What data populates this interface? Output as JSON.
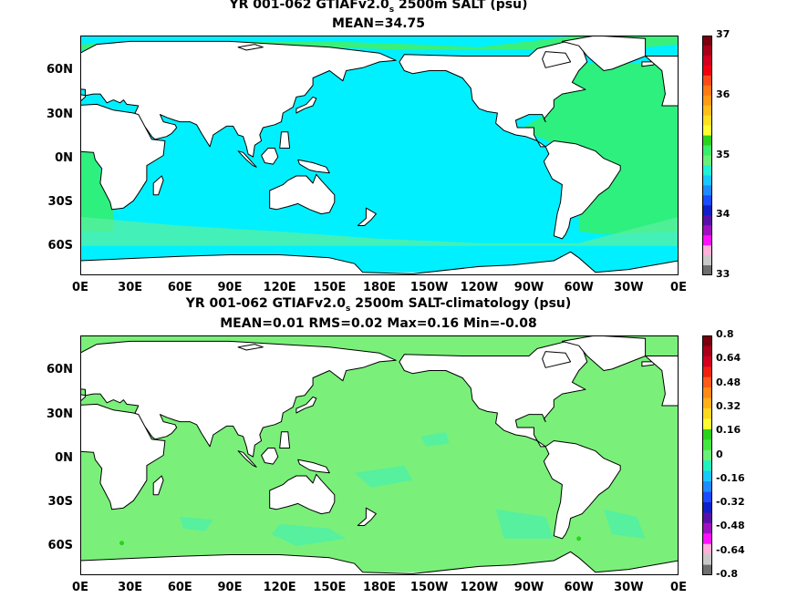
{
  "panels": [
    {
      "title_pre": "YR 001-062 GTIAFv2.0",
      "title_sub": "s",
      "title_post": " 2500m SALT (psu)",
      "subtitle": "MEAN=34.75"
    },
    {
      "title_pre": "YR 001-062 GTIAFv2.0",
      "title_sub": "s",
      "title_post": " 2500m SALT-climatology (psu)",
      "subtitle": "MEAN=0.01   RMS=0.02   Max=0.16   Min=-0.08"
    }
  ],
  "chart_data": [
    {
      "type": "heatmap",
      "variable": "SALT",
      "units": "psu",
      "mean": 34.75,
      "x_ticks": [
        "0E",
        "30E",
        "60E",
        "90E",
        "120E",
        "150E",
        "180E",
        "150W",
        "120W",
        "90W",
        "60W",
        "30W",
        "0E"
      ],
      "y_ticks": [
        "60N",
        "30N",
        "0N",
        "30S",
        "60S"
      ],
      "colorbar": {
        "labels": [
          "37",
          "36",
          "35",
          "34",
          "33"
        ],
        "values": [
          37,
          36,
          35,
          34,
          33
        ],
        "range": [
          33,
          37
        ],
        "colors": [
          "#7a0010",
          "#a80018",
          "#d20020",
          "#f20010",
          "#ff4a1a",
          "#ff7a14",
          "#ff9a14",
          "#ffbe18",
          "#ffe020",
          "#ffff30",
          "#2ad21c",
          "#38ee6a",
          "#6af078",
          "#20f2d6",
          "#18c8ff",
          "#1e8cff",
          "#1c4cff",
          "#1020c8",
          "#5a10a8",
          "#a010c0",
          "#ff10ff",
          "#ffb0d8",
          "#c8c8c8",
          "#6e6e6e"
        ]
      },
      "fill_colors": {
        "pacific_indian": "#00f0ff",
        "atlantic": "#2ef07e",
        "southern": "#5af0a0",
        "outlying": "#3af07a"
      }
    },
    {
      "type": "heatmap",
      "variable": "SALT-climatology",
      "units": "psu",
      "mean": 0.01,
      "rms": 0.02,
      "max": 0.16,
      "min": -0.08,
      "x_ticks": [
        "0E",
        "30E",
        "60E",
        "90E",
        "120E",
        "150E",
        "180E",
        "150W",
        "120W",
        "90W",
        "60W",
        "30W",
        "0E"
      ],
      "y_ticks": [
        "60N",
        "30N",
        "0N",
        "30S",
        "60S"
      ],
      "colorbar": {
        "labels": [
          "0.8",
          "0.64",
          "0.48",
          "0.32",
          "0.16",
          "0",
          "-0.16",
          "-0.32",
          "-0.48",
          "-0.64",
          "-0.8"
        ],
        "values": [
          0.8,
          0.64,
          0.48,
          0.32,
          0.16,
          0,
          -0.16,
          -0.32,
          -0.48,
          -0.64,
          -0.8
        ],
        "range": [
          -0.8,
          0.8
        ],
        "colors": [
          "#7a0010",
          "#a80018",
          "#d20020",
          "#f02010",
          "#ff5a18",
          "#ff8a14",
          "#ffb018",
          "#ffd820",
          "#ffff30",
          "#2ad21c",
          "#40e840",
          "#6af078",
          "#20f2c0",
          "#18c8ff",
          "#1e8cff",
          "#1c4cff",
          "#1020c8",
          "#5a10a8",
          "#a010c0",
          "#ff10ff",
          "#ffb0d8",
          "#c8c8c8",
          "#6e6e6e"
        ]
      },
      "fill_colors": {
        "base": "#7af07a",
        "patch": "#4ef0a8",
        "highlight": "#2ad21c"
      }
    }
  ]
}
